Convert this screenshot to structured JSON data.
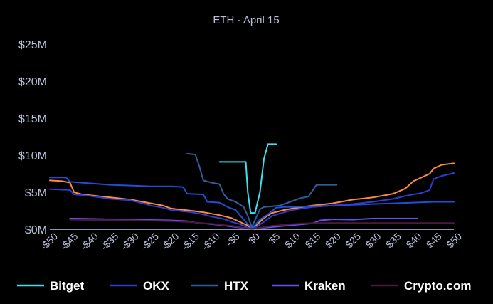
{
  "chart_data": {
    "type": "line",
    "title": "ETH - April 15",
    "xlabel": "",
    "ylabel": "",
    "x_ticks": [
      "-$50",
      "-$45",
      "-$40",
      "-$35",
      "-$30",
      "-$25",
      "-$20",
      "-$15",
      "-$10",
      "-$5",
      "$0",
      "$5",
      "$10",
      "$15",
      "$20",
      "$25",
      "$30",
      "$35",
      "$40",
      "$45",
      "$50"
    ],
    "x_tick_values": [
      -50,
      -45,
      -40,
      -35,
      -30,
      -25,
      -20,
      -15,
      -10,
      -5,
      0,
      5,
      10,
      15,
      20,
      25,
      30,
      35,
      40,
      45,
      50
    ],
    "y_ticks": [
      "$0M",
      "$5M",
      "$10M",
      "$15M",
      "$20M",
      "$25M"
    ],
    "y_tick_values": [
      0,
      5,
      10,
      15,
      20,
      25
    ],
    "xlim": [
      -50,
      50
    ],
    "ylim": [
      0,
      25
    ],
    "grid": false,
    "legend_position": "bottom",
    "series": [
      {
        "name": "Bitget",
        "color": "#3ee0f0",
        "points": [
          [
            -8,
            9.1
          ],
          [
            -5,
            9.1
          ],
          [
            -1.5,
            9.1
          ],
          [
            -1,
            5.0
          ],
          [
            -0.3,
            2.2
          ],
          [
            0.8,
            2.2
          ],
          [
            2,
            5
          ],
          [
            3,
            9.5
          ],
          [
            4,
            11.5
          ],
          [
            6,
            11.5
          ]
        ]
      },
      {
        "name": "OKX",
        "color": "#2e3ccf",
        "points": [
          [
            -50,
            5.4
          ],
          [
            -45,
            5.3
          ],
          [
            -44,
            4.7
          ],
          [
            -40,
            4.5
          ],
          [
            -35,
            4.1
          ],
          [
            -30,
            3.9
          ],
          [
            -27,
            3.5
          ],
          [
            -25,
            3.2
          ],
          [
            -22,
            2.9
          ],
          [
            -20,
            2.6
          ],
          [
            -15,
            2.3
          ],
          [
            -12,
            2.0
          ],
          [
            -10,
            1.7
          ],
          [
            -7,
            1.4
          ],
          [
            -5,
            1.0
          ],
          [
            -3,
            0.7
          ],
          [
            -1,
            0.2
          ],
          [
            0,
            0.05
          ],
          [
            1,
            0.3
          ],
          [
            3,
            1.0
          ],
          [
            5,
            1.8
          ],
          [
            8,
            2.3
          ],
          [
            10,
            2.6
          ],
          [
            15,
            3.0
          ],
          [
            20,
            3.2
          ],
          [
            25,
            3.4
          ],
          [
            30,
            3.7
          ],
          [
            35,
            4.1
          ],
          [
            38,
            4.5
          ],
          [
            42,
            4.9
          ],
          [
            44,
            5.3
          ],
          [
            45,
            6.8
          ],
          [
            47,
            7.2
          ],
          [
            50,
            7.6
          ]
        ]
      },
      {
        "name": "HTX",
        "color": "#2d5f9e",
        "points": [
          [
            -16,
            10.2
          ],
          [
            -14,
            10.1
          ],
          [
            -13,
            8.5
          ],
          [
            -12,
            6.6
          ],
          [
            -10,
            6.3
          ],
          [
            -8,
            6.1
          ],
          [
            -7,
            4.8
          ],
          [
            -6,
            4.1
          ],
          [
            -4,
            3.7
          ],
          [
            -2,
            3.0
          ],
          [
            -1,
            1.8
          ],
          [
            0,
            0.3
          ],
          [
            1,
            1.5
          ],
          [
            2,
            2.7
          ],
          [
            3,
            3.0
          ],
          [
            5,
            3.1
          ],
          [
            7,
            3.2
          ],
          [
            8,
            3.4
          ],
          [
            10,
            3.8
          ],
          [
            12,
            4.2
          ],
          [
            14,
            4.4
          ],
          [
            16,
            6.0
          ],
          [
            21,
            6.0
          ]
        ]
      },
      {
        "name": "Kraken",
        "color": "#6b4cf0",
        "points": [
          [
            -45,
            1.45
          ],
          [
            -40,
            1.4
          ],
          [
            -35,
            1.35
          ],
          [
            -30,
            1.3
          ],
          [
            -25,
            1.25
          ],
          [
            -20,
            1.2
          ],
          [
            -16,
            1.1
          ],
          [
            -14,
            0.9
          ],
          [
            -10,
            0.7
          ],
          [
            -7,
            0.5
          ],
          [
            -4,
            0.3
          ],
          [
            -2,
            0.15
          ],
          [
            0,
            0.05
          ],
          [
            2,
            0.15
          ],
          [
            5,
            0.3
          ],
          [
            10,
            0.55
          ],
          [
            15,
            0.8
          ],
          [
            17,
            1.2
          ],
          [
            20,
            1.35
          ],
          [
            25,
            1.3
          ],
          [
            30,
            1.45
          ],
          [
            35,
            1.45
          ],
          [
            40,
            1.45
          ],
          [
            41,
            1.45
          ]
        ]
      },
      {
        "name": "Crypto.com",
        "color": "#4a1a3c",
        "points": [
          [
            -45,
            1.3
          ],
          [
            -40,
            1.25
          ],
          [
            -30,
            1.2
          ],
          [
            -20,
            1.1
          ],
          [
            -15,
            0.95
          ],
          [
            -10,
            0.75
          ],
          [
            -5,
            0.45
          ],
          [
            -2,
            0.2
          ],
          [
            0,
            0.05
          ],
          [
            2,
            0.2
          ],
          [
            5,
            0.45
          ],
          [
            10,
            0.7
          ],
          [
            15,
            0.85
          ],
          [
            20,
            0.85
          ],
          [
            30,
            0.85
          ],
          [
            40,
            0.85
          ],
          [
            50,
            0.85
          ]
        ]
      },
      {
        "name": "",
        "color": "#ff8a3d",
        "points": [
          [
            -50,
            6.6
          ],
          [
            -47,
            6.5
          ],
          [
            -45,
            6.3
          ],
          [
            -44,
            5.0
          ],
          [
            -42,
            4.7
          ],
          [
            -40,
            4.6
          ],
          [
            -37,
            4.4
          ],
          [
            -35,
            4.3
          ],
          [
            -30,
            4.0
          ],
          [
            -27,
            3.7
          ],
          [
            -25,
            3.5
          ],
          [
            -22,
            3.2
          ],
          [
            -20,
            2.8
          ],
          [
            -15,
            2.5
          ],
          [
            -12,
            2.3
          ],
          [
            -10,
            2.1
          ],
          [
            -8,
            1.9
          ],
          [
            -5,
            1.5
          ],
          [
            -3,
            1.0
          ],
          [
            -1,
            0.5
          ],
          [
            0,
            0.05
          ],
          [
            1,
            0.5
          ],
          [
            3,
            1.5
          ],
          [
            5,
            2.2
          ],
          [
            8,
            2.6
          ],
          [
            10,
            2.8
          ],
          [
            15,
            3.2
          ],
          [
            20,
            3.5
          ],
          [
            25,
            4.0
          ],
          [
            30,
            4.3
          ],
          [
            35,
            4.8
          ],
          [
            38,
            5.5
          ],
          [
            40,
            6.5
          ],
          [
            42,
            7.0
          ],
          [
            44,
            7.5
          ],
          [
            45,
            8.2
          ],
          [
            47,
            8.7
          ],
          [
            50,
            8.9
          ]
        ]
      },
      {
        "name": "",
        "color": "#1f4fd8",
        "points": [
          [
            -50,
            7.0
          ],
          [
            -46,
            7.0
          ],
          [
            -45,
            6.4
          ],
          [
            -40,
            6.2
          ],
          [
            -35,
            6.0
          ],
          [
            -30,
            5.9
          ],
          [
            -25,
            5.8
          ],
          [
            -20,
            5.8
          ],
          [
            -17,
            5.7
          ],
          [
            -16,
            4.8
          ],
          [
            -12,
            4.7
          ],
          [
            -11,
            3.7
          ],
          [
            -8,
            3.6
          ],
          [
            -6,
            3.0
          ],
          [
            -4,
            2.6
          ],
          [
            -2,
            1.3
          ],
          [
            0,
            0.1
          ],
          [
            2,
            1.3
          ],
          [
            4,
            2.0
          ],
          [
            6,
            2.9
          ],
          [
            8,
            3.0
          ],
          [
            10,
            3.0
          ],
          [
            15,
            3.1
          ],
          [
            20,
            3.2
          ],
          [
            25,
            3.3
          ],
          [
            30,
            3.4
          ],
          [
            35,
            3.5
          ],
          [
            40,
            3.6
          ],
          [
            45,
            3.7
          ],
          [
            50,
            3.7
          ]
        ]
      }
    ]
  }
}
